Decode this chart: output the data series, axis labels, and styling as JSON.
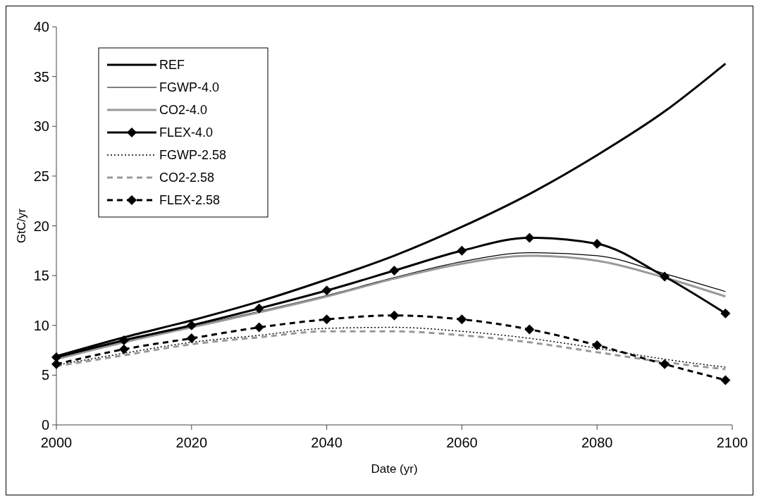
{
  "chart_data": {
    "type": "line",
    "xlabel": "Date (yr)",
    "ylabel": "GtC/yr",
    "x": [
      2000,
      2010,
      2020,
      2030,
      2040,
      2050,
      2060,
      2070,
      2080,
      2090,
      2099
    ],
    "xlim": [
      2000,
      2100
    ],
    "xticks": [
      2000,
      2020,
      2040,
      2060,
      2080,
      2100
    ],
    "ylim": [
      0,
      40
    ],
    "yticks": [
      0,
      5,
      10,
      15,
      20,
      25,
      30,
      35,
      40
    ],
    "grid": false,
    "legend": "top left",
    "series": [
      {
        "name": "REF",
        "color": "#000000",
        "line_style": "solid",
        "marker": "none",
        "values": [
          6.9,
          8.8,
          10.5,
          12.4,
          14.6,
          17.0,
          19.9,
          23.2,
          27.1,
          31.5,
          36.3
        ]
      },
      {
        "name": "FGWP-4.0",
        "color": "#000000",
        "line_style": "solid",
        "marker": "none",
        "values": [
          6.7,
          8.4,
          9.9,
          11.4,
          13.0,
          14.8,
          16.4,
          17.3,
          17.0,
          15.2,
          13.4
        ]
      },
      {
        "name": "CO2-4.0",
        "color": "#999999",
        "line_style": "solid",
        "marker": "none",
        "values": [
          6.6,
          8.3,
          9.8,
          11.3,
          12.9,
          14.7,
          16.2,
          17.0,
          16.5,
          14.8,
          12.9
        ]
      },
      {
        "name": "FLEX-4.0",
        "color": "#000000",
        "line_style": "solid",
        "marker": "diamond",
        "values": [
          6.8,
          8.5,
          10.0,
          11.7,
          13.5,
          15.5,
          17.5,
          18.8,
          18.2,
          14.9,
          11.2
        ]
      },
      {
        "name": "FGWP-2.58",
        "color": "#000000",
        "line_style": "dotted",
        "marker": "none",
        "values": [
          6.0,
          7.2,
          8.3,
          9.0,
          9.7,
          9.8,
          9.4,
          8.7,
          7.7,
          6.6,
          5.8
        ]
      },
      {
        "name": "CO2-2.58",
        "color": "#999999",
        "line_style": "dashed",
        "marker": "none",
        "values": [
          5.9,
          7.0,
          8.1,
          8.8,
          9.4,
          9.4,
          9.0,
          8.3,
          7.3,
          6.3,
          5.6
        ]
      },
      {
        "name": "FLEX-2.58",
        "color": "#000000",
        "line_style": "dashed",
        "marker": "diamond",
        "values": [
          6.1,
          7.6,
          8.7,
          9.8,
          10.6,
          11.0,
          10.6,
          9.6,
          8.0,
          6.1,
          4.5
        ]
      }
    ]
  }
}
